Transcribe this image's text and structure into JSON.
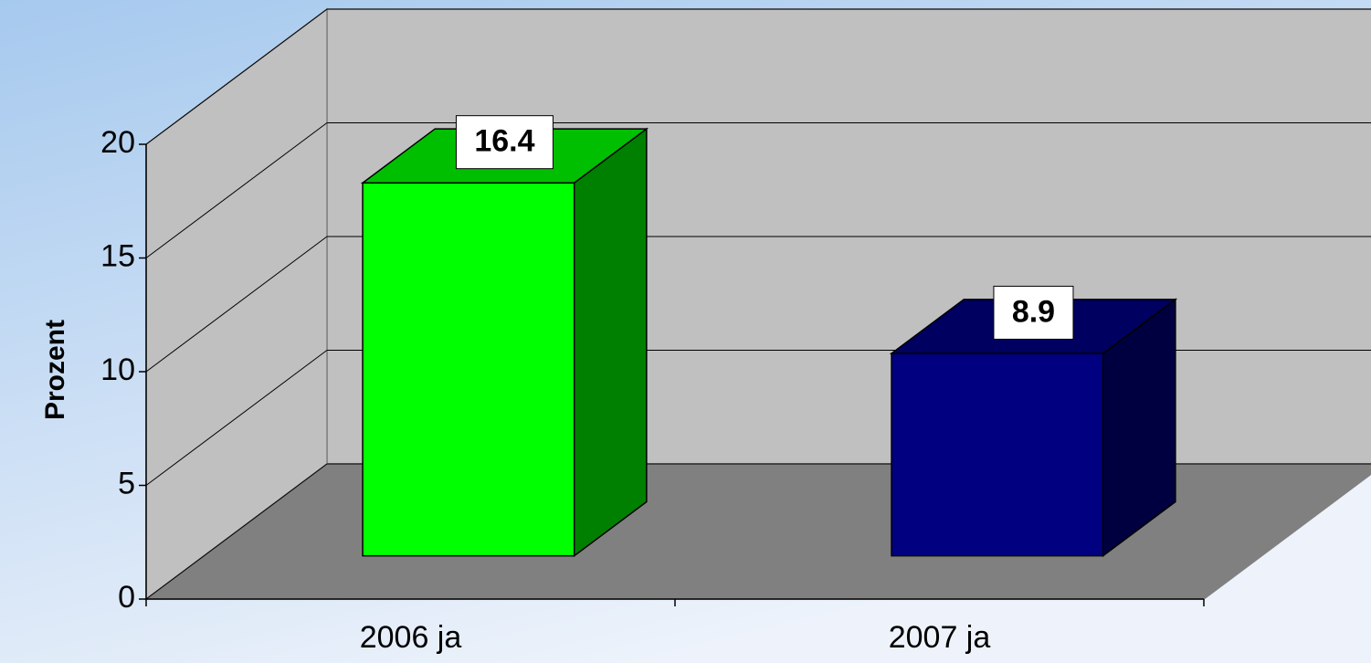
{
  "chart_data": {
    "type": "bar3d",
    "y_label": "Prozent",
    "categories": [
      "2006 ja",
      "2007 ja"
    ],
    "values": [
      16.4,
      8.9
    ],
    "colors": [
      "#00ff00",
      "#000080"
    ],
    "ylim": [
      0,
      20
    ],
    "yticks": [
      0,
      5,
      10,
      15,
      20
    ],
    "grid": true
  }
}
